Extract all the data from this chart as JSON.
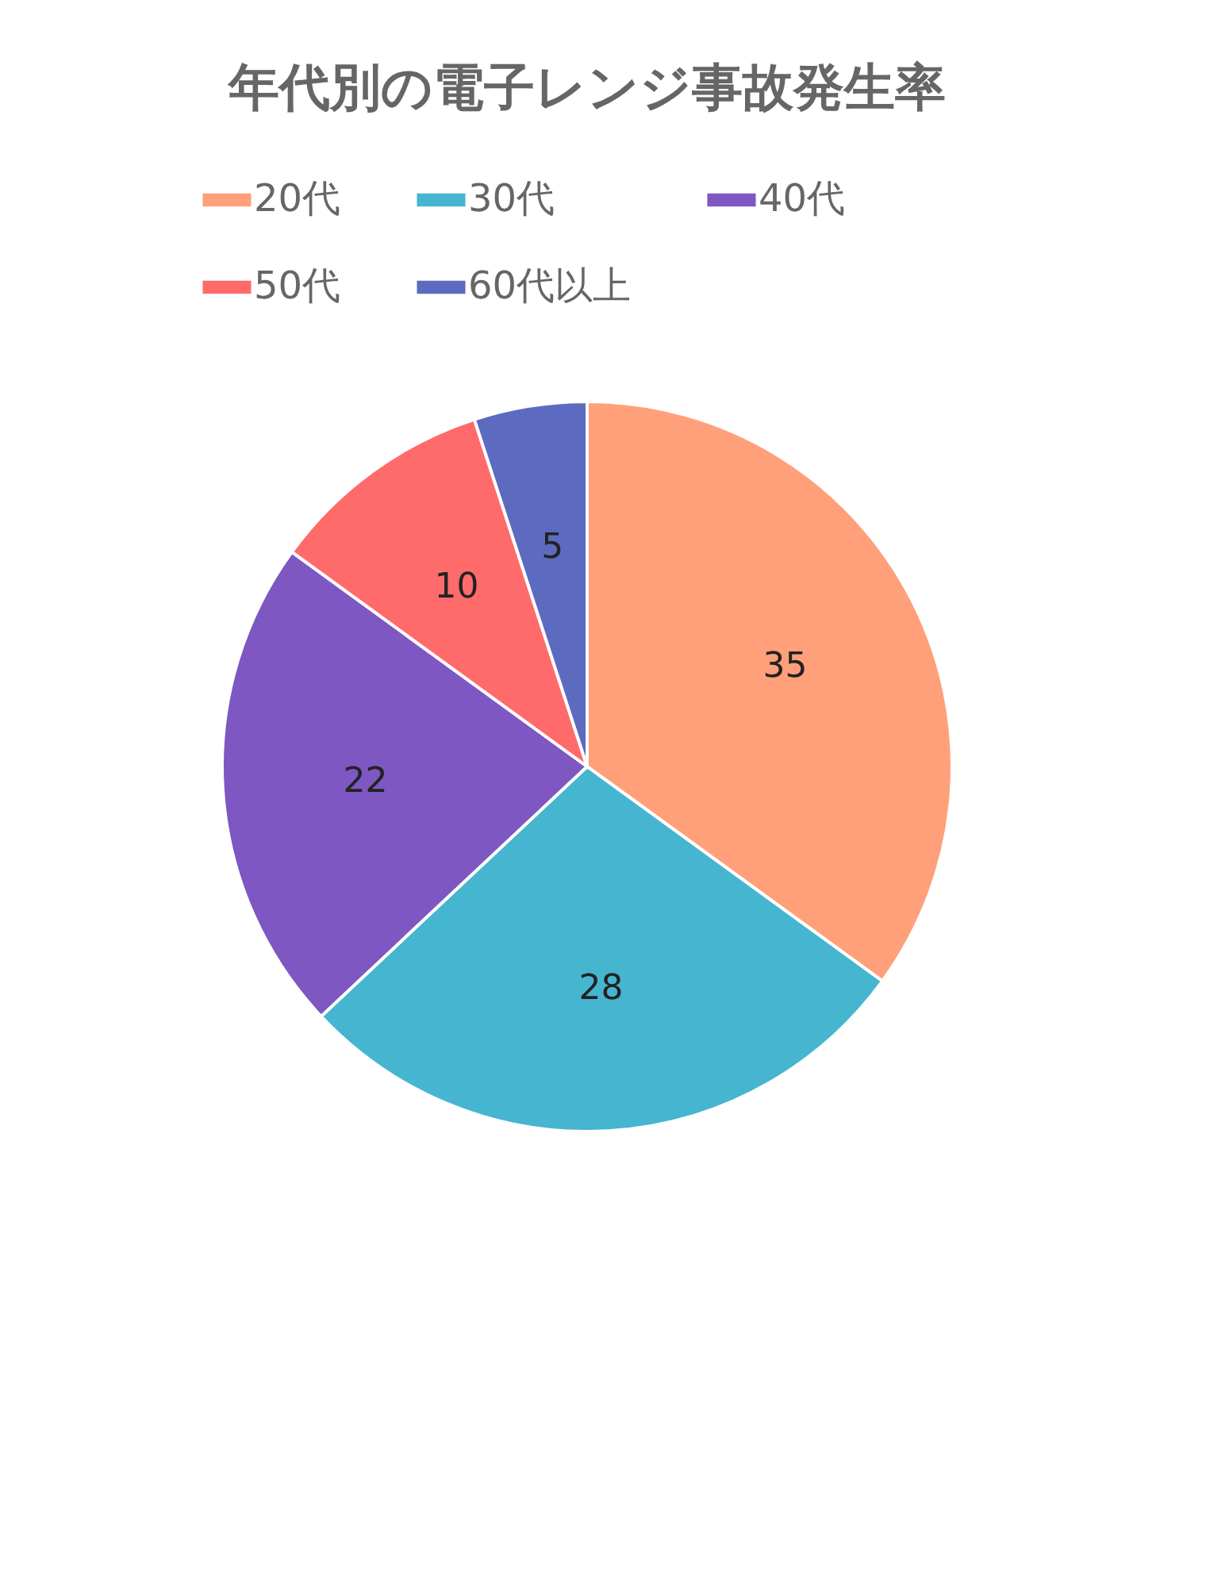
{
  "chart_data": {
    "type": "pie",
    "title": "年代別の電子レンジ事故発生率",
    "categories": [
      "20代",
      "30代",
      "40代",
      "50代",
      "60代以上"
    ],
    "values": [
      35,
      28,
      22,
      10,
      5
    ],
    "colors": [
      "#ffa07a",
      "#45b5d0",
      "#7e57c2",
      "#ff6b6b",
      "#5c6bc0"
    ],
    "data_labels": true,
    "legend": "top"
  }
}
